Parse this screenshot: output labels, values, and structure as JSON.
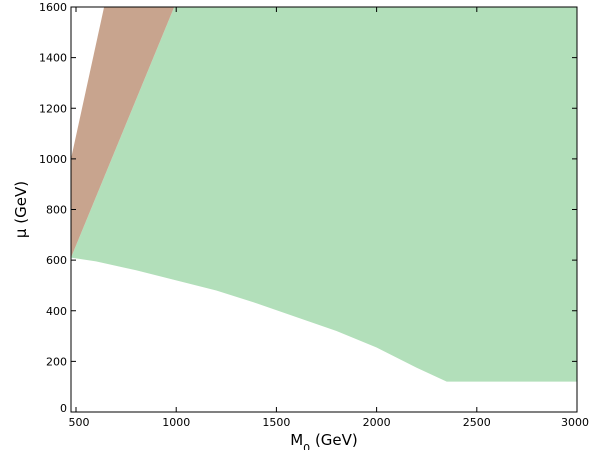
{
  "chart_data": {
    "type": "area",
    "xlabel_main": "M",
    "xlabel_sub": "0",
    "xlabel_rest": " (GeV)",
    "ylabel": "μ (GeV)",
    "xlim": [
      475,
      3000
    ],
    "ylim": [
      0,
      1600
    ],
    "x_ticks": [
      {
        "v": 500,
        "label": "500"
      },
      {
        "v": 1000,
        "label": "1000"
      },
      {
        "v": 1500,
        "label": "1500"
      },
      {
        "v": 2000,
        "label": "2000"
      },
      {
        "v": 2500,
        "label": "2500"
      },
      {
        "v": 3000,
        "label": "3000"
      }
    ],
    "y_ticks": [
      {
        "v": 0,
        "label": "0"
      },
      {
        "v": 200,
        "label": "200"
      },
      {
        "v": 400,
        "label": "400"
      },
      {
        "v": 600,
        "label": "600"
      },
      {
        "v": 800,
        "label": "800"
      },
      {
        "v": 1000,
        "label": "1000"
      },
      {
        "v": 1200,
        "label": "1200"
      },
      {
        "v": 1400,
        "label": "1400"
      },
      {
        "v": 1600,
        "label": "1600"
      }
    ],
    "regions": [
      {
        "name": "green-region",
        "color": "#b2dfba",
        "points": [
          [
            475,
            610
          ],
          [
            600,
            595
          ],
          [
            800,
            560
          ],
          [
            1000,
            520
          ],
          [
            1200,
            480
          ],
          [
            1400,
            430
          ],
          [
            1600,
            375
          ],
          [
            1800,
            320
          ],
          [
            2000,
            255
          ],
          [
            2200,
            175
          ],
          [
            2350,
            120
          ],
          [
            3000,
            120
          ],
          [
            3000,
            1600
          ],
          [
            990,
            1600
          ]
        ]
      },
      {
        "name": "brown-region",
        "color": "#c8a48e",
        "points": [
          [
            475,
            1000
          ],
          [
            640,
            1600
          ],
          [
            990,
            1600
          ],
          [
            475,
            610
          ]
        ]
      }
    ],
    "grid": false
  }
}
